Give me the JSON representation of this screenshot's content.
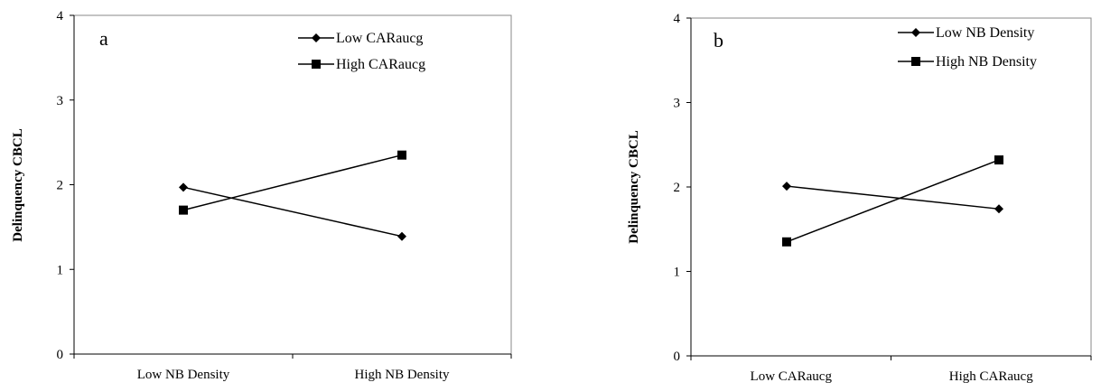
{
  "chart_data": [
    {
      "type": "line",
      "panel_label": "a",
      "categories": [
        "Low NB Density",
        "High NB Density"
      ],
      "series": [
        {
          "name": "Low CARaucg",
          "marker": "diamond",
          "values": [
            1.97,
            1.39
          ]
        },
        {
          "name": "High CARaucg",
          "marker": "square",
          "values": [
            1.7,
            2.35
          ]
        }
      ],
      "ylabel": "Delinquency CBCL",
      "xlabel": "",
      "ylim": [
        0,
        4
      ],
      "yticks": [
        "0",
        "1",
        "2",
        "3",
        "4"
      ],
      "grid": false,
      "legend_position": "top-right"
    },
    {
      "type": "line",
      "panel_label": "b",
      "categories": [
        "Low CARaucg",
        "High CARaucg"
      ],
      "series": [
        {
          "name": "Low NB Density",
          "marker": "diamond",
          "values": [
            2.01,
            1.74
          ]
        },
        {
          "name": "High NB Density",
          "marker": "square",
          "values": [
            1.35,
            2.32
          ]
        }
      ],
      "ylabel": "Delinquency CBCL",
      "xlabel": "",
      "ylim": [
        0,
        4
      ],
      "yticks": [
        "0",
        "1",
        "2",
        "3",
        "4"
      ],
      "grid": false,
      "legend_position": "top-right"
    }
  ]
}
